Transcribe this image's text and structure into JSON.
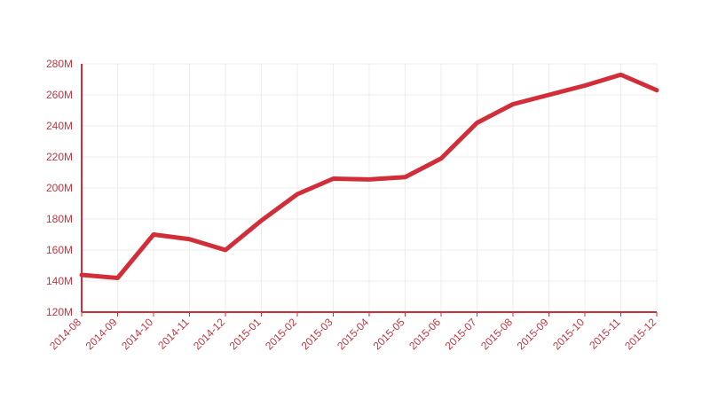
{
  "chart_data": {
    "type": "line",
    "categories": [
      "2014-08",
      "2014-09",
      "2014-10",
      "2014-11",
      "2014-12",
      "2015-01",
      "2015-02",
      "2015-03",
      "2015-04",
      "2015-05",
      "2015-06",
      "2015-07",
      "2015-08",
      "2015-09",
      "2015-10",
      "2015-11",
      "2015-12"
    ],
    "series": [
      {
        "color": "#d22e3a",
        "values": [
          144,
          142,
          170,
          167,
          160,
          179,
          196,
          206,
          205.5,
          207,
          219,
          242,
          254,
          260,
          266,
          273,
          263
        ]
      }
    ],
    "ylim": [
      120,
      280
    ],
    "yticks": [
      {
        "value": 120,
        "label": "120M"
      },
      {
        "value": 140,
        "label": "140M"
      },
      {
        "value": 160,
        "label": "160M"
      },
      {
        "value": 180,
        "label": "180M"
      },
      {
        "value": 200,
        "label": "200M"
      },
      {
        "value": 220,
        "label": "220M"
      },
      {
        "value": 240,
        "label": "240M"
      },
      {
        "value": 260,
        "label": "260M"
      },
      {
        "value": 280,
        "label": "280M"
      }
    ],
    "grid": true
  }
}
